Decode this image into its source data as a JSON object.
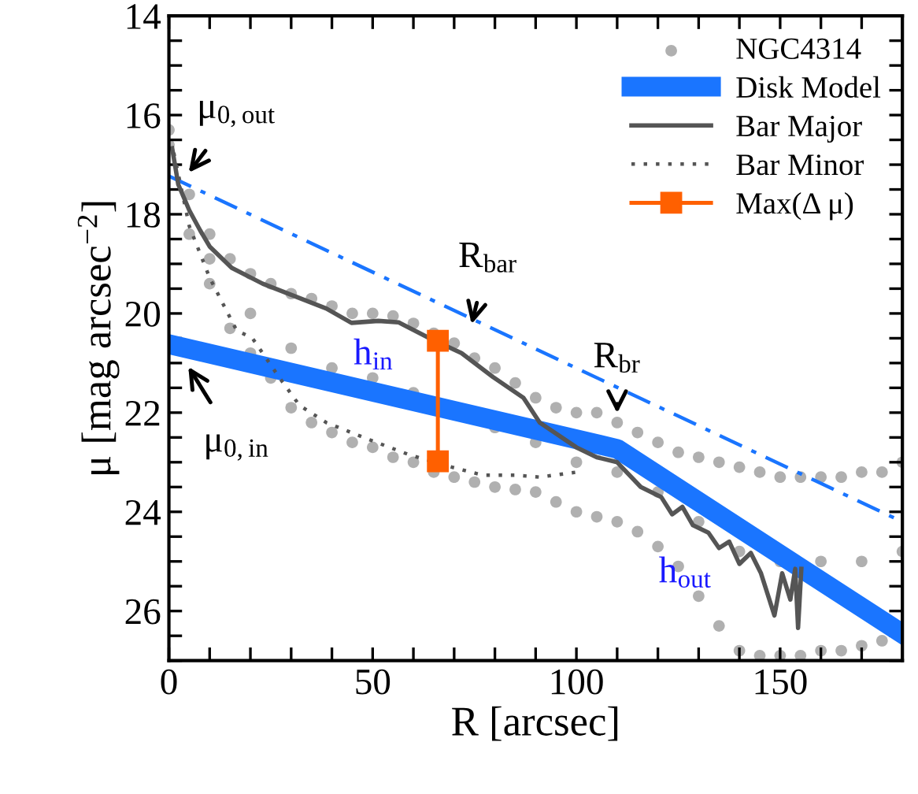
{
  "chart_data": {
    "type": "line",
    "xlabel": "R [arcsec]",
    "ylabel": "μ [mag arcsec$^{−2}$]",
    "xlim": [
      0,
      180
    ],
    "ylim": [
      27,
      14
    ],
    "xticks": [
      0,
      {
        "value": 10,
        "label": null
      },
      {
        "value": 20,
        "label": null
      },
      {
        "value": 30,
        "label": null
      },
      {
        "value": 40,
        "label": null
      },
      50,
      {
        "value": 60,
        "label": null
      },
      {
        "value": 70,
        "label": null
      },
      {
        "value": 80,
        "label": null
      },
      {
        "value": 90,
        "label": null
      },
      100,
      {
        "value": 110,
        "label": null
      },
      {
        "value": 120,
        "label": null
      },
      {
        "value": 130,
        "label": null
      },
      {
        "value": 140,
        "label": null
      },
      150,
      {
        "value": 160,
        "label": null
      },
      {
        "value": 170,
        "label": null
      },
      {
        "value": 180,
        "label": null
      }
    ],
    "yticks": [
      14,
      {
        "value": 14.5,
        "label": null
      },
      {
        "value": 15,
        "label": null
      },
      {
        "value": 15.5,
        "label": null
      },
      16,
      {
        "value": 16.5,
        "label": null
      },
      {
        "value": 17,
        "label": null
      },
      {
        "value": 17.5,
        "label": null
      },
      18,
      {
        "value": 18.5,
        "label": null
      },
      {
        "value": 19,
        "label": null
      },
      {
        "value": 19.5,
        "label": null
      },
      20,
      {
        "value": 20.5,
        "label": null
      },
      {
        "value": 21,
        "label": null
      },
      {
        "value": 21.5,
        "label": null
      },
      22,
      {
        "value": 22.5,
        "label": null
      },
      {
        "value": 23,
        "label": null
      },
      {
        "value": 23.5,
        "label": null
      },
      24,
      {
        "value": 24.5,
        "label": null
      },
      {
        "value": 25,
        "label": null
      },
      {
        "value": 25.5,
        "label": null
      },
      26,
      {
        "value": 26.5,
        "label": null
      },
      {
        "value": 27,
        "label": null
      }
    ],
    "grid": false,
    "legend": "top right",
    "series": [
      {
        "name": "NGC4314",
        "type": "scatter",
        "marker": "circle",
        "color": "#b0b0b0",
        "x": [
          0,
          5,
          10,
          15,
          20,
          25,
          30,
          35,
          40,
          45,
          50,
          55,
          60,
          65,
          70,
          75,
          80,
          85,
          90,
          95,
          100,
          105,
          110,
          115,
          120,
          125,
          130,
          135,
          140,
          145,
          150,
          155,
          160,
          165,
          170,
          175,
          180,
          0,
          5,
          10,
          15,
          20,
          25,
          30,
          35,
          40,
          45,
          50,
          55,
          60,
          65,
          70,
          75,
          80,
          85,
          90,
          95,
          100,
          105,
          110,
          115,
          120,
          125,
          130,
          135,
          140,
          145,
          150,
          155,
          160,
          165,
          170,
          175,
          10,
          20,
          30,
          40,
          50,
          60,
          80,
          90,
          100,
          110,
          120,
          130,
          140,
          150,
          160,
          170,
          180
        ],
        "values": [
          16.3,
          17.6,
          18.4,
          18.9,
          19.2,
          19.4,
          19.6,
          19.7,
          19.85,
          20.0,
          20.0,
          20.05,
          20.2,
          20.4,
          20.6,
          20.9,
          21.1,
          21.4,
          21.7,
          21.9,
          22.0,
          22.0,
          22.2,
          22.4,
          22.6,
          22.8,
          22.9,
          23.0,
          23.1,
          23.2,
          23.3,
          23.3,
          23.3,
          23.3,
          23.2,
          23.2,
          23.0,
          16.6,
          18.4,
          19.4,
          20.3,
          20.8,
          21.3,
          21.9,
          22.2,
          22.4,
          22.6,
          22.7,
          22.9,
          23.0,
          23.2,
          23.3,
          23.4,
          23.5,
          23.55,
          23.6,
          23.8,
          24.0,
          24.1,
          24.2,
          24.4,
          24.7,
          25.1,
          25.7,
          26.3,
          26.8,
          26.9,
          26.9,
          26.9,
          26.8,
          26.8,
          26.7,
          26.6,
          18.9,
          20.0,
          20.7,
          21.1,
          21.3,
          21.6,
          22.3,
          22.6,
          23.0,
          23.2,
          23.6,
          24.2,
          24.8,
          25.0,
          25.0,
          25.0,
          24.8
        ]
      },
      {
        "line_style": "dashed",
        "color": "#1a75ff",
        "x": [
          0,
          180
        ],
        "values": [
          17.23,
          24.2
        ]
      },
      {
        "name": "Disk Model",
        "line_style": "solid",
        "color": "#1a75ff",
        "x": [
          0,
          110,
          180
        ],
        "values": [
          20.62,
          22.73,
          26.46
        ]
      },
      {
        "name": "Bar Major",
        "line_style": "solid",
        "color": "#555555",
        "x": [
          0.8,
          2.3,
          5,
          7.7,
          10,
          15.4,
          23,
          30.8,
          38.6,
          44.8,
          51.4,
          56.4,
          64,
          71.8,
          79.5,
          87,
          91,
          100,
          105,
          110,
          115.8,
          120.8,
          123.5,
          126,
          128.6,
          132.4,
          135,
          137.5,
          140,
          142.8,
          145.3,
          148.6,
          150.5,
          152.5,
          153.7,
          154.4,
          155.2
        ],
        "values": [
          16.67,
          17.4,
          17.92,
          18.33,
          18.65,
          19.08,
          19.4,
          19.65,
          19.9,
          20.19,
          20.15,
          20.18,
          20.5,
          20.8,
          21.28,
          21.7,
          22.2,
          22.7,
          22.9,
          23.0,
          23.5,
          23.7,
          24.05,
          23.9,
          24.27,
          24.42,
          24.73,
          24.6,
          25.05,
          24.83,
          25.24,
          26.09,
          25.24,
          25.77,
          25.15,
          26.34,
          25.15
        ]
      },
      {
        "name": "Bar Minor",
        "line_style": "dotted",
        "color": "#555555",
        "x": [
          1.2,
          5,
          10,
          16.6,
          20.5,
          27,
          32,
          38.6,
          48.7,
          59,
          69.5,
          77,
          85,
          91,
          100
        ],
        "values": [
          16.76,
          18.24,
          19.28,
          20.34,
          20.5,
          21.28,
          21.85,
          22.2,
          22.53,
          22.85,
          23.1,
          23.26,
          23.26,
          23.3,
          23.2
        ]
      },
      {
        "name": "Max(Δ μ)",
        "line_style": "solid",
        "marker": "square",
        "color": "#ff6000",
        "x": [
          66,
          66
        ],
        "values": [
          20.55,
          22.98
        ]
      }
    ],
    "annotations": [
      {
        "text": "μ$_{0,out}$",
        "x": 4.2,
        "y": 17.23
      },
      {
        "text": "R$_{bar}$",
        "x": 74,
        "y": 20.3
      },
      {
        "text": "R$_{br}$",
        "x": 110,
        "y": 22.1
      },
      {
        "text": "μ$_{0,in}$",
        "x": 4.2,
        "y": 21.0
      },
      "h$_{in}$",
      "h$_{out}$"
    ]
  }
}
